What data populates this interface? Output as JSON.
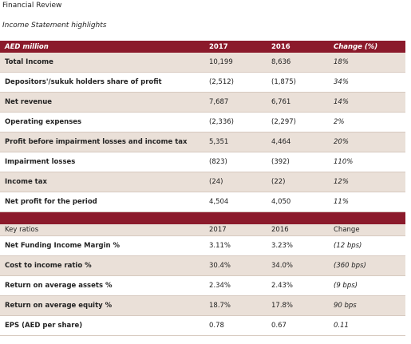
{
  "header": {
    "title": "Financial Review",
    "subtitle": "Income Statement highlights"
  },
  "table": {
    "columns": [
      "AED million",
      "2017",
      "2016",
      "Change (%)"
    ],
    "rows": [
      [
        "Total Income",
        "10,199",
        "8,636",
        "18%"
      ],
      [
        "Depositors'/sukuk holders share of profit",
        "(2,512)",
        "(1,875)",
        "34%"
      ],
      [
        "Net revenue",
        "7,687",
        "6,761",
        "14%"
      ],
      [
        "Operating expenses",
        "(2,336)",
        "(2,297)",
        "2%"
      ],
      [
        "Profit before impairment losses and income tax",
        "5,351",
        "4,464",
        "20%"
      ],
      [
        "Impairment losses",
        "(823)",
        "(392)",
        "110%"
      ],
      [
        "Income tax",
        "(24)",
        "(22)",
        "12%"
      ],
      [
        "Net profit for the period",
        "4,504",
        "4,050",
        "11%"
      ]
    ]
  },
  "ratios": {
    "columns": [
      "Key ratios",
      "2017",
      "2016",
      "Change"
    ],
    "rows": [
      [
        "Net Funding Income Margin %",
        "3.11%",
        "3.23%",
        "(12 bps)"
      ],
      [
        "Cost to income ratio %",
        "30.4%",
        "34.0%",
        "(360 bps)"
      ],
      [
        "Return on average assets %",
        "2.34%",
        "2.43%",
        "(9 bps)"
      ],
      [
        "Return on average equity %",
        "18.7%",
        "17.8%",
        "90 bps"
      ],
      [
        "EPS (AED per share)",
        "0.78",
        "0.67",
        "0.11"
      ]
    ]
  }
}
